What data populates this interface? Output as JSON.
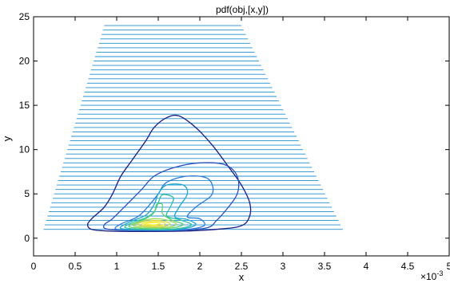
{
  "chart_data": {
    "type": "contour",
    "title": "pdf(obj,[x,y])",
    "xlabel": "x",
    "ylabel": "y",
    "x_exponent_label": "×10",
    "x_exponent_power": "-3",
    "xlim": [
      0,
      5
    ],
    "ylim": [
      -2,
      25
    ],
    "x_ticks": [
      0,
      0.5,
      1,
      1.5,
      2,
      2.5,
      3,
      3.5,
      4,
      4.5,
      5
    ],
    "x_tick_labels": [
      "0",
      "0.5",
      "1",
      "1.5",
      "2",
      "2.5",
      "3",
      "3.5",
      "4",
      "4.5",
      "5"
    ],
    "y_ticks": [
      0,
      5,
      10,
      15,
      20,
      25
    ],
    "y_tick_labels": [
      "0",
      "5",
      "10",
      "15",
      "20",
      "25"
    ],
    "box": true,
    "grid": false,
    "data_rows": {
      "y_start": 1,
      "y_end": 24,
      "y_step": 0.5,
      "color": "#1f8fd0",
      "x_left_at_bottom": 0.12,
      "x_left_at_top": 0.85,
      "x_right_at_bottom": 3.72,
      "x_right_at_top": 2.5
    },
    "contour_levels": [
      {
        "color": "#1b1b7e",
        "points": [
          [
            0.7,
            1.0
          ],
          [
            0.9,
            0.8
          ],
          [
            1.3,
            0.75
          ],
          [
            1.8,
            0.8
          ],
          [
            2.2,
            1.0
          ],
          [
            2.5,
            1.4
          ],
          [
            2.6,
            2.5
          ],
          [
            2.6,
            4.0
          ],
          [
            2.5,
            6.0
          ],
          [
            2.35,
            8.0
          ],
          [
            2.15,
            10.5
          ],
          [
            1.95,
            12.5
          ],
          [
            1.75,
            13.8
          ],
          [
            1.6,
            13.6
          ],
          [
            1.45,
            12.5
          ],
          [
            1.35,
            11.0
          ],
          [
            1.2,
            9.0
          ],
          [
            1.05,
            7.0
          ],
          [
            0.95,
            5.0
          ],
          [
            0.85,
            3.5
          ],
          [
            0.7,
            2.2
          ],
          [
            0.65,
            1.5
          ]
        ]
      },
      {
        "color": "#2a4fb8",
        "points": [
          [
            0.9,
            1.0
          ],
          [
            1.3,
            0.85
          ],
          [
            1.8,
            0.9
          ],
          [
            2.1,
            1.2
          ],
          [
            2.2,
            2.0
          ],
          [
            2.3,
            3.0
          ],
          [
            2.45,
            5.0
          ],
          [
            2.45,
            7.0
          ],
          [
            2.3,
            8.3
          ],
          [
            2.0,
            8.5
          ],
          [
            1.7,
            8.0
          ],
          [
            1.45,
            7.0
          ],
          [
            1.3,
            5.5
          ],
          [
            1.1,
            3.6
          ],
          [
            0.95,
            2.2
          ],
          [
            0.85,
            1.5
          ]
        ]
      },
      {
        "color": "#2c7ad8",
        "points": [
          [
            1.0,
            1.0
          ],
          [
            1.35,
            0.9
          ],
          [
            1.8,
            0.95
          ],
          [
            2.05,
            1.4
          ],
          [
            2.0,
            2.2
          ],
          [
            1.85,
            2.4
          ],
          [
            1.95,
            3.5
          ],
          [
            2.15,
            5.0
          ],
          [
            2.1,
            6.7
          ],
          [
            1.85,
            7.0
          ],
          [
            1.6,
            6.3
          ],
          [
            1.5,
            5.0
          ],
          [
            1.38,
            3.6
          ],
          [
            1.25,
            2.4
          ],
          [
            1.05,
            1.6
          ]
        ]
      },
      {
        "color": "#21a5c8",
        "points": [
          [
            1.05,
            1.1
          ],
          [
            1.35,
            0.95
          ],
          [
            1.75,
            1.0
          ],
          [
            1.95,
            1.5
          ],
          [
            1.85,
            2.1
          ],
          [
            1.7,
            2.4
          ],
          [
            1.75,
            3.5
          ],
          [
            1.85,
            5.0
          ],
          [
            1.8,
            6.0
          ],
          [
            1.6,
            6.0
          ],
          [
            1.5,
            5.0
          ],
          [
            1.45,
            3.8
          ],
          [
            1.35,
            2.6
          ],
          [
            1.15,
            1.8
          ]
        ]
      },
      {
        "color": "#2fc0a0",
        "points": [
          [
            1.1,
            1.2
          ],
          [
            1.35,
            1.0
          ],
          [
            1.7,
            1.05
          ],
          [
            1.9,
            1.5
          ],
          [
            1.75,
            2.1
          ],
          [
            1.6,
            2.5
          ],
          [
            1.65,
            3.6
          ],
          [
            1.68,
            4.6
          ],
          [
            1.55,
            4.9
          ],
          [
            1.5,
            4.0
          ],
          [
            1.45,
            3.0
          ],
          [
            1.35,
            2.3
          ],
          [
            1.2,
            1.8
          ]
        ]
      },
      {
        "color": "#60d070",
        "points": [
          [
            1.15,
            1.3
          ],
          [
            1.35,
            1.1
          ],
          [
            1.65,
            1.15
          ],
          [
            1.8,
            1.55
          ],
          [
            1.65,
            2.1
          ],
          [
            1.55,
            2.8
          ],
          [
            1.55,
            3.8
          ],
          [
            1.48,
            3.8
          ],
          [
            1.45,
            2.9
          ],
          [
            1.35,
            2.2
          ],
          [
            1.22,
            1.7
          ]
        ]
      },
      {
        "color": "#a0d85a",
        "points": [
          [
            1.2,
            1.4
          ],
          [
            1.4,
            1.2
          ],
          [
            1.62,
            1.25
          ],
          [
            1.72,
            1.6
          ],
          [
            1.6,
            2.05
          ],
          [
            1.45,
            2.2
          ],
          [
            1.3,
            1.9
          ]
        ]
      },
      {
        "color": "#d2d84a",
        "points": [
          [
            1.25,
            1.5
          ],
          [
            1.4,
            1.3
          ],
          [
            1.58,
            1.35
          ],
          [
            1.64,
            1.65
          ],
          [
            1.55,
            1.95
          ],
          [
            1.42,
            2.0
          ],
          [
            1.3,
            1.8
          ]
        ]
      },
      {
        "color": "#f0e040",
        "points": [
          [
            1.3,
            1.55
          ],
          [
            1.42,
            1.42
          ],
          [
            1.55,
            1.47
          ],
          [
            1.58,
            1.7
          ],
          [
            1.48,
            1.88
          ],
          [
            1.37,
            1.8
          ]
        ]
      },
      {
        "color": "#fff23a",
        "points": [
          [
            1.35,
            1.6
          ],
          [
            1.45,
            1.52
          ],
          [
            1.52,
            1.62
          ],
          [
            1.48,
            1.75
          ],
          [
            1.39,
            1.72
          ]
        ]
      }
    ]
  }
}
